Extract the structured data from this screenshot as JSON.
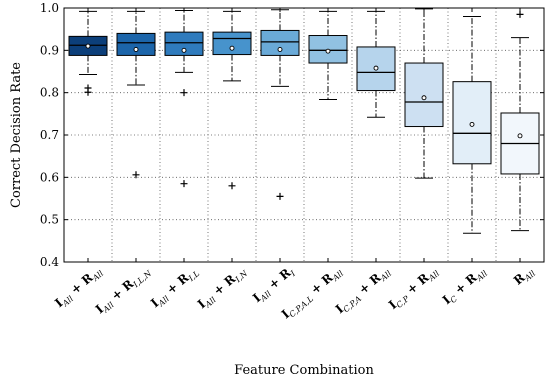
{
  "chart_data": {
    "type": "boxplot",
    "xlabel": "Feature Combination",
    "ylabel": "Correct Decision Rate",
    "ylim": [
      0.4,
      1.0
    ],
    "yticks": [
      "0.4",
      "0.5",
      "0.6",
      "0.7",
      "0.8",
      "0.9",
      "1.0"
    ],
    "grid": true,
    "categories": [
      {
        "label": "I",
        "sub": "All",
        "rest": [
          {
            "t": " + "
          },
          {
            "t": "R",
            "s": "All"
          }
        ]
      },
      {
        "label": "I",
        "sub": "All",
        "rest": [
          {
            "t": " + "
          },
          {
            "t": "R",
            "s": "I,L,N"
          }
        ]
      },
      {
        "label": "I",
        "sub": "All",
        "rest": [
          {
            "t": " + "
          },
          {
            "t": "R",
            "s": "I,L"
          }
        ]
      },
      {
        "label": "I",
        "sub": "All",
        "rest": [
          {
            "t": " + "
          },
          {
            "t": "R",
            "s": "I,N"
          }
        ]
      },
      {
        "label": "I",
        "sub": "All",
        "rest": [
          {
            "t": " + "
          },
          {
            "t": "R",
            "s": "I"
          }
        ]
      },
      {
        "label": "I",
        "sub": "C,P,A,L",
        "rest": [
          {
            "t": " + "
          },
          {
            "t": "R",
            "s": "All"
          }
        ]
      },
      {
        "label": "I",
        "sub": "C,P,A",
        "rest": [
          {
            "t": " + "
          },
          {
            "t": "R",
            "s": "All"
          }
        ]
      },
      {
        "label": "I",
        "sub": "C,P",
        "rest": [
          {
            "t": " + "
          },
          {
            "t": "R",
            "s": "All"
          }
        ]
      },
      {
        "label": "I",
        "sub": "C",
        "rest": [
          {
            "t": " + "
          },
          {
            "t": "R",
            "s": "All"
          }
        ]
      },
      {
        "label": "R",
        "sub": "All",
        "rest": []
      }
    ],
    "boxes": [
      {
        "whisker_low": 0.843,
        "q1": 0.888,
        "median": 0.912,
        "q3": 0.933,
        "whisker_high": 0.992,
        "mean": 0.91,
        "outliers": [
          0.811,
          0.801
        ]
      },
      {
        "whisker_low": 0.818,
        "q1": 0.888,
        "median": 0.918,
        "q3": 0.94,
        "whisker_high": 0.992,
        "mean": 0.902,
        "outliers": [
          0.606
        ]
      },
      {
        "whisker_low": 0.848,
        "q1": 0.888,
        "median": 0.918,
        "q3": 0.943,
        "whisker_high": 0.994,
        "mean": 0.9,
        "outliers": [
          0.8,
          0.585
        ]
      },
      {
        "whisker_low": 0.828,
        "q1": 0.89,
        "median": 0.928,
        "q3": 0.943,
        "whisker_high": 0.992,
        "mean": 0.905,
        "outliers": [
          0.58
        ]
      },
      {
        "whisker_low": 0.815,
        "q1": 0.888,
        "median": 0.92,
        "q3": 0.947,
        "whisker_high": 0.996,
        "mean": 0.902,
        "outliers": [
          0.555
        ]
      },
      {
        "whisker_low": 0.784,
        "q1": 0.87,
        "median": 0.9,
        "q3": 0.935,
        "whisker_high": 0.992,
        "mean": 0.898,
        "outliers": []
      },
      {
        "whisker_low": 0.742,
        "q1": 0.805,
        "median": 0.848,
        "q3": 0.908,
        "whisker_high": 0.992,
        "mean": 0.858,
        "outliers": []
      },
      {
        "whisker_low": 0.598,
        "q1": 0.72,
        "median": 0.778,
        "q3": 0.87,
        "whisker_high": 0.998,
        "mean": 0.788,
        "outliers": []
      },
      {
        "whisker_low": 0.468,
        "q1": 0.632,
        "median": 0.704,
        "q3": 0.826,
        "whisker_high": 0.98,
        "mean": 0.725,
        "outliers": []
      },
      {
        "whisker_low": 0.474,
        "q1": 0.608,
        "median": 0.68,
        "q3": 0.752,
        "whisker_high": 0.93,
        "mean": 0.698,
        "outliers": [
          0.985
        ]
      }
    ],
    "colors": [
      "#0c3f7a",
      "#1c65aa",
      "#2f7bbd",
      "#4793cc",
      "#6aaad8",
      "#91c1e2",
      "#b6d4ec",
      "#cde0f2",
      "#e2eef8",
      "#f2f7fc"
    ]
  }
}
